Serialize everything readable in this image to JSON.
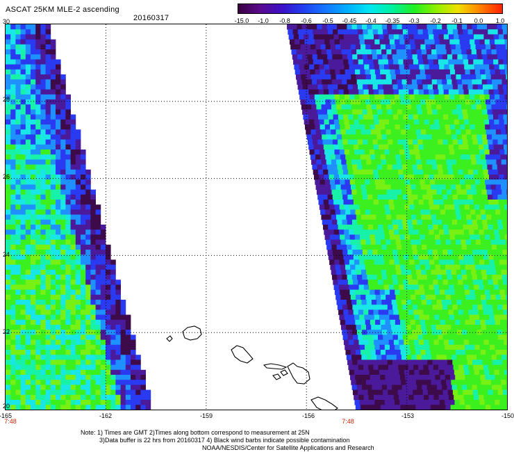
{
  "header": {
    "title": "ASCAT 25KM MLE-2 ascending",
    "date": "20160317"
  },
  "colorbar": {
    "labels": [
      "-15.0",
      "-1.0",
      "-0.8",
      "-0.6",
      "-0.5",
      "-0.45",
      "-0.4",
      "-0.35",
      "-0.3",
      "-0.2",
      "-0.1",
      "0.0",
      "1.0"
    ],
    "colors": [
      "#3b003f",
      "#5a0a8e",
      "#3a10c8",
      "#2040f0",
      "#1478ff",
      "#00b0ff",
      "#00e8f0",
      "#00f0a0",
      "#20f020",
      "#90f000",
      "#f0e000",
      "#ff8000",
      "#ff2000"
    ]
  },
  "map": {
    "lat_labels": [
      "30",
      "28",
      "26",
      "24",
      "22",
      "20"
    ],
    "lon_labels": [
      "-165",
      "-162",
      "-159",
      "-156",
      "-153",
      "-150"
    ],
    "time_labels": [
      "7:48",
      "7:48"
    ],
    "swath_colors": {
      "deep": "#3d0a4a",
      "purple": "#4a1a9a",
      "blue": "#2a3af0",
      "lightblue": "#1e90ff",
      "cyan": "#19e6e6",
      "aqua": "#18f2a8",
      "green": "#3cf020",
      "lime": "#78f014"
    }
  },
  "footer": {
    "line1": "Note: 1) Times are GMT 2)Times along bottom correspond to measurement at 25N",
    "line2": "3)Data buffer is 22 hrs from 20160317 4) Black wind barbs indicate possible contamination",
    "line3": "NOAA/NESDIS/Center for Satellite Applications and Research"
  }
}
